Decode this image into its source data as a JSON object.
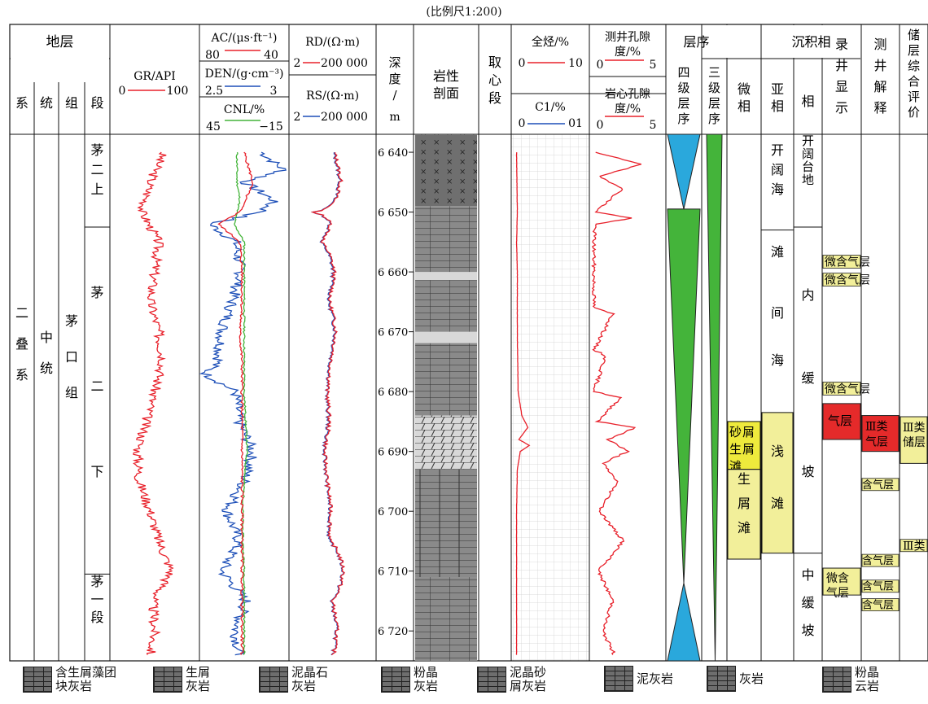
{
  "caption": "(比例尺1:200)",
  "headers": {
    "stratum": "地层",
    "xi": "系",
    "tong": "统",
    "zu": "组",
    "duan": "段",
    "gr": "GR/API",
    "gr_min": "0",
    "gr_max": "100",
    "ac": "AC/(μs·ft⁻¹)",
    "ac_min": "80",
    "ac_max": "40",
    "den": "DEN/(g·cm⁻³)",
    "den_min": "2.5",
    "den_max": "3",
    "cnl": "CNL/%",
    "cnl_min": "45",
    "cnl_max": "−15",
    "rd": "RD/(Ω·m)",
    "rd_min": "2",
    "rd_max": "200 000",
    "rs": "RS/(Ω·m)",
    "rs_min": "2",
    "rs_max": "200 000",
    "depth": "深度/m",
    "lith": "岩性剖面",
    "core": "取心段",
    "tg": "全烃/%",
    "tg_min": "0",
    "tg_max": "10",
    "c1": "C1/%",
    "c1_min": "0",
    "c1_max": "01",
    "logpor": "测井孔隙度/%",
    "logpor_min": "0",
    "logpor_max": "5",
    "corepor": "岩心孔隙度/%",
    "corepor_min": "0",
    "corepor_max": "5",
    "seq": "层序",
    "seq4": "四级层序",
    "seq3": "三级层序",
    "facies": "沉积相",
    "micro": "微相",
    "sub": "亚相",
    "fac": "相",
    "mud": "录井显示",
    "interp": "测井解释",
    "eval": "储层综合评价"
  },
  "strat": {
    "xi": "二叠系",
    "tong": "中统",
    "zu": "茅口组",
    "duan": [
      {
        "label": "茅二上"
      },
      {
        "label": "茅二下"
      },
      {
        "label": "茅一段"
      }
    ]
  },
  "facies": {
    "fac": [
      "开阔台地",
      "内缓坡",
      "中缓坡"
    ],
    "sub": [
      "开阔海",
      "滩间海",
      "浅滩"
    ],
    "micro": [
      "砂屑生屑滩",
      "生屑滩"
    ]
  },
  "mud_shows": [
    "微含气层",
    "微含气层",
    "微含气层",
    "气层",
    "微含气层"
  ],
  "interp": [
    "Ⅲ类气层",
    "含气层",
    "含气层",
    "含气层",
    "含气层"
  ],
  "eval": [
    "Ⅲ类储层",
    "Ⅲ类"
  ],
  "legend": [
    {
      "label": "含生屑藻团块灰岩"
    },
    {
      "label": "生屑灰岩"
    },
    {
      "label": "泥晶石灰岩"
    },
    {
      "label": "粉晶灰岩"
    },
    {
      "label": "泥晶砂屑灰岩"
    },
    {
      "label": "泥灰岩"
    },
    {
      "label": "灰岩"
    },
    {
      "label": "粉晶云岩"
    }
  ],
  "colors": {
    "red": "#e8202a",
    "blue": "#1d4fb8",
    "green": "#44b43a",
    "cyan": "#2aa8dc",
    "yellow": "#f2ef9a",
    "gasred": "#e52a2a"
  },
  "chart_data": {
    "type": "well-log",
    "depth_range": [
      6637,
      6725
    ],
    "depth_ticks": [
      6640,
      6650,
      6660,
      6670,
      6680,
      6690,
      6700,
      6710,
      6720
    ],
    "depth_tick_labels": [
      "6 640",
      "6 650",
      "6 660",
      "6 670",
      "6 680",
      "6 690",
      "6 700",
      "6 710",
      "6 720"
    ],
    "curves": {
      "GR": {
        "range": [
          0,
          100
        ],
        "depth": [
          6640,
          6645,
          6650,
          6655,
          6660,
          6665,
          6670,
          6675,
          6680,
          6685,
          6690,
          6695,
          6700,
          6705,
          6710,
          6715,
          6720,
          6724
        ],
        "values": [
          60,
          45,
          35,
          55,
          50,
          45,
          55,
          60,
          50,
          40,
          30,
          32,
          45,
          55,
          70,
          48,
          50,
          45
        ]
      },
      "AC": {
        "range": [
          80,
          40
        ],
        "depth": [
          6640,
          6645,
          6650,
          6652,
          6655,
          6660,
          6665,
          6670,
          6675,
          6680,
          6685,
          6690,
          6695,
          6700,
          6705,
          6710,
          6715,
          6720,
          6724
        ],
        "values": [
          60,
          56,
          62,
          72,
          62,
          61,
          61,
          62,
          61,
          61,
          61,
          61,
          61,
          61,
          61,
          61,
          61,
          61,
          61
        ]
      },
      "DEN": {
        "range": [
          2.5,
          3
        ],
        "depth": [
          6640,
          6643,
          6645,
          6648,
          6650,
          6652,
          6655,
          6660,
          6665,
          6670,
          6675,
          6677,
          6680,
          6685,
          6690,
          6695,
          6700,
          6705,
          6710,
          6715,
          6720,
          6724
        ],
        "values": [
          2.85,
          2.98,
          2.75,
          2.92,
          2.85,
          2.55,
          2.7,
          2.73,
          2.68,
          2.62,
          2.6,
          2.52,
          2.7,
          2.72,
          2.8,
          2.75,
          2.65,
          2.72,
          2.62,
          2.76,
          2.7,
          2.72
        ]
      },
      "CNL": {
        "range": [
          45,
          -15
        ],
        "depth": [
          6640,
          6645,
          6648,
          6650,
          6652,
          6655,
          6660,
          6665,
          6670,
          6675,
          6680,
          6685,
          6690,
          6695,
          6700,
          6705,
          6710,
          6715,
          6720,
          6724
        ],
        "values": [
          20,
          20,
          18,
          20,
          22,
          15,
          15,
          15,
          15,
          15,
          15,
          14,
          13,
          15,
          16,
          16,
          15,
          15,
          15,
          15
        ]
      },
      "RD": {
        "range": [
          2,
          200000
        ],
        "depth": [
          6640,
          6645,
          6650,
          6652,
          6655,
          6660,
          6665,
          6670,
          6675,
          6680,
          6685,
          6690,
          6695,
          6700,
          6705,
          6710,
          6715,
          6720,
          6724
        ],
        "values": [
          800,
          2000,
          30,
          500,
          120,
          800,
          400,
          1000,
          500,
          300,
          400,
          200,
          300,
          500,
          400,
          3000,
          600,
          1200,
          700
        ]
      },
      "RS": {
        "range": [
          2,
          200000
        ],
        "depth": [
          6640,
          6645,
          6650,
          6652,
          6655,
          6660,
          6665,
          6670,
          6675,
          6680,
          6685,
          6690,
          6695,
          6700,
          6705,
          6710,
          6715,
          6720,
          6724
        ],
        "values": [
          700,
          1800,
          30,
          450,
          110,
          700,
          350,
          900,
          450,
          280,
          350,
          180,
          280,
          450,
          350,
          2800,
          550,
          1100,
          650
        ]
      },
      "TG": {
        "range": [
          0,
          10
        ],
        "depth": [
          6640,
          6650,
          6655,
          6660,
          6670,
          6680,
          6684,
          6686,
          6688,
          6689,
          6690,
          6693,
          6700,
          6710,
          6720,
          6724
        ],
        "values": [
          0.5,
          0.6,
          0.5,
          0.6,
          0.6,
          0.7,
          1.2,
          2.0,
          0.8,
          2.2,
          1.0,
          0.6,
          0.5,
          0.5,
          0.5,
          0.5
        ]
      },
      "POR_LOG": {
        "range": [
          0,
          5
        ],
        "depth": [
          6640,
          6642,
          6644,
          6646,
          6650,
          6651,
          6652,
          6655,
          6660,
          6666,
          6667,
          6673,
          6674,
          6680,
          6681,
          6685,
          6686,
          6688,
          6690,
          6692,
          6695,
          6700,
          6705,
          6710,
          6715,
          6720,
          6724
        ],
        "values": [
          0.2,
          3.5,
          0.5,
          2.2,
          0.3,
          2.8,
          0.3,
          0.2,
          0.2,
          0.2,
          1.5,
          0.2,
          1.0,
          0.2,
          2.0,
          0.5,
          3.0,
          1.2,
          2.5,
          0.8,
          1.8,
          0.6,
          2.2,
          0.5,
          1.5,
          0.8,
          1.6
        ]
      }
    }
  }
}
